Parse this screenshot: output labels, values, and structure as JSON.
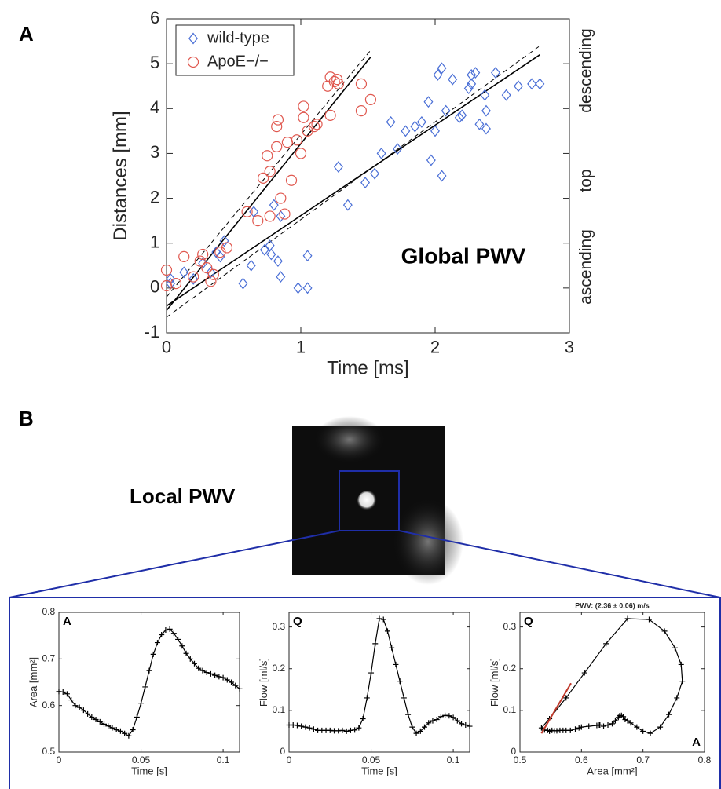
{
  "panel_b": {
    "label": "B",
    "caption": "Local PWV"
  },
  "chart_data": [
    {
      "type": "scatter",
      "panel_label": "A",
      "x_label": "Time [ms]",
      "y_label": "Distances [mm]",
      "xlim": [
        0,
        3
      ],
      "ylim": [
        -1,
        6
      ],
      "xticks": [
        0,
        1,
        2,
        3
      ],
      "yticks": [
        -1,
        0,
        1,
        2,
        3,
        4,
        5,
        6
      ],
      "legend": "upper left",
      "annotations": [
        "Global PWV"
      ],
      "right_labels": [
        "ascending",
        "top",
        "descending"
      ],
      "series": [
        {
          "name": "wild-type",
          "color": "#4a6fd6",
          "marker": "diamond",
          "x": [
            0.03,
            0.03,
            0.13,
            0.2,
            0.27,
            0.33,
            0.4,
            0.43,
            0.37,
            0.57,
            0.65,
            0.63,
            0.73,
            0.77,
            0.78,
            0.8,
            0.83,
            0.85,
            0.85,
            0.98,
            1.05,
            1.05,
            1.28,
            1.35,
            1.48,
            1.55,
            1.6,
            1.67,
            1.72,
            1.78,
            1.85,
            1.9,
            1.95,
            1.97,
            2.0,
            2.02,
            2.05,
            2.05,
            2.08,
            2.13,
            2.18,
            2.2,
            2.25,
            2.27,
            2.27,
            2.3,
            2.33,
            2.37,
            2.38,
            2.38,
            2.45,
            2.53,
            2.62,
            2.72,
            2.78
          ],
          "values": [
            0.1,
            0.2,
            0.35,
            0.2,
            0.55,
            0.35,
            0.7,
            1.05,
            0.8,
            0.1,
            1.7,
            0.5,
            0.85,
            0.95,
            0.75,
            1.85,
            0.6,
            0.25,
            1.6,
            0.0,
            0.0,
            0.72,
            2.7,
            1.85,
            2.35,
            2.55,
            3.0,
            3.7,
            3.1,
            3.5,
            3.6,
            3.7,
            4.15,
            2.85,
            3.5,
            4.75,
            2.5,
            4.9,
            3.95,
            4.65,
            3.8,
            3.85,
            4.45,
            4.55,
            4.75,
            4.8,
            3.65,
            4.3,
            3.55,
            3.95,
            4.8,
            4.3,
            4.5,
            4.55,
            4.55
          ]
        },
        {
          "name": "ApoE−/−",
          "color": "#e0584f",
          "marker": "circle",
          "x": [
            0,
            0,
            0.07,
            0.13,
            0.2,
            0.25,
            0.27,
            0.3,
            0.33,
            0.35,
            0.4,
            0.45,
            0.6,
            0.68,
            0.72,
            0.75,
            0.77,
            0.77,
            0.82,
            0.82,
            0.83,
            0.85,
            0.88,
            0.9,
            0.93,
            0.97,
            1.0,
            1.02,
            1.02,
            1.05,
            1.1,
            1.12,
            1.2,
            1.22,
            1.22,
            1.25,
            1.27,
            1.28,
            1.45,
            1.45,
            1.52
          ],
          "values": [
            0.05,
            0.4,
            0.1,
            0.7,
            0.25,
            0.6,
            0.75,
            0.45,
            0.15,
            0.3,
            0.8,
            0.9,
            1.7,
            1.5,
            2.45,
            2.95,
            2.6,
            1.6,
            3.15,
            3.6,
            3.75,
            2.0,
            1.65,
            3.25,
            2.4,
            3.3,
            3.0,
            3.8,
            4.05,
            3.5,
            3.6,
            3.65,
            4.5,
            4.7,
            3.85,
            4.6,
            4.65,
            4.55,
            4.55,
            3.95,
            4.2
          ]
        }
      ],
      "fit_lines": [
        {
          "x": [
            0,
            2.78
          ],
          "values": [
            -0.4,
            5.2
          ],
          "color": "#000000",
          "dashed": false
        },
        {
          "x": [
            0,
            2.78
          ],
          "values": [
            -0.65,
            5.4
          ],
          "color": "#000000",
          "dashed": true
        },
        {
          "x": [
            0,
            1.52
          ],
          "values": [
            -0.5,
            5.15
          ],
          "color": "#000000",
          "dashed": false
        },
        {
          "x": [
            0,
            1.52
          ],
          "values": [
            -0.2,
            5.3
          ],
          "color": "#000000",
          "dashed": true
        }
      ]
    },
    {
      "type": "line",
      "corner_labels": [
        "A"
      ],
      "x_label": "Time [s]",
      "y_label": "Area [mm²]",
      "xlim": [
        0,
        0.11
      ],
      "ylim": [
        0.5,
        0.8
      ],
      "xticks": [
        0,
        0.05,
        0.1
      ],
      "yticks": [
        0.5,
        0.6,
        0.7,
        0.8
      ],
      "color": "#000000",
      "x": [
        0,
        0.0025,
        0.005,
        0.0075,
        0.01,
        0.0125,
        0.015,
        0.0175,
        0.02,
        0.0225,
        0.025,
        0.0275,
        0.03,
        0.0325,
        0.035,
        0.0375,
        0.04,
        0.0425,
        0.045,
        0.0475,
        0.05,
        0.0525,
        0.055,
        0.0575,
        0.06,
        0.0625,
        0.065,
        0.0675,
        0.07,
        0.0725,
        0.075,
        0.0775,
        0.08,
        0.0825,
        0.085,
        0.0875,
        0.09,
        0.0925,
        0.095,
        0.0975,
        0.1,
        0.1025,
        0.105,
        0.1075,
        0.11
      ],
      "values": [
        0.63,
        0.629,
        0.625,
        0.612,
        0.6,
        0.596,
        0.59,
        0.582,
        0.575,
        0.57,
        0.565,
        0.56,
        0.556,
        0.552,
        0.548,
        0.545,
        0.54,
        0.535,
        0.548,
        0.575,
        0.605,
        0.64,
        0.675,
        0.71,
        0.735,
        0.752,
        0.762,
        0.764,
        0.755,
        0.742,
        0.728,
        0.712,
        0.7,
        0.69,
        0.68,
        0.675,
        0.671,
        0.668,
        0.665,
        0.662,
        0.66,
        0.655,
        0.65,
        0.643,
        0.636
      ]
    },
    {
      "type": "line",
      "corner_labels": [
        "Q"
      ],
      "x_label": "Time [s]",
      "y_label": "Flow [ml/s]",
      "xlim": [
        0,
        0.11
      ],
      "ylim": [
        0,
        0.335
      ],
      "xticks": [
        0,
        0.05,
        0.1
      ],
      "yticks": [
        0,
        0.1,
        0.2,
        0.3
      ],
      "color": "#000000",
      "x": [
        0,
        0.0025,
        0.005,
        0.0075,
        0.01,
        0.0125,
        0.015,
        0.0175,
        0.02,
        0.0225,
        0.025,
        0.0275,
        0.03,
        0.0325,
        0.035,
        0.0375,
        0.04,
        0.0425,
        0.045,
        0.0475,
        0.05,
        0.0525,
        0.055,
        0.0575,
        0.06,
        0.0625,
        0.065,
        0.0675,
        0.07,
        0.0725,
        0.075,
        0.0775,
        0.08,
        0.0825,
        0.085,
        0.0875,
        0.09,
        0.0925,
        0.095,
        0.0975,
        0.1,
        0.1025,
        0.105,
        0.1075,
        0.11
      ],
      "values": [
        0.065,
        0.065,
        0.064,
        0.062,
        0.06,
        0.058,
        0.055,
        0.052,
        0.052,
        0.052,
        0.052,
        0.051,
        0.051,
        0.052,
        0.05,
        0.052,
        0.053,
        0.058,
        0.08,
        0.13,
        0.19,
        0.26,
        0.32,
        0.318,
        0.29,
        0.25,
        0.21,
        0.17,
        0.13,
        0.09,
        0.06,
        0.045,
        0.05,
        0.06,
        0.07,
        0.075,
        0.078,
        0.085,
        0.088,
        0.087,
        0.083,
        0.075,
        0.068,
        0.065,
        0.062
      ]
    },
    {
      "type": "line",
      "title": "PWV: (2.36 ± 0.06) m/s",
      "corner_labels": [
        "Q",
        "A"
      ],
      "x_label": "Area [mm²]",
      "y_label": "Flow [ml/s]",
      "xlim": [
        0.5,
        0.8
      ],
      "ylim": [
        0,
        0.335
      ],
      "xticks": [
        0.5,
        0.6,
        0.7,
        0.8
      ],
      "yticks": [
        0,
        0.1,
        0.2,
        0.3
      ],
      "color": "#000000",
      "x": [
        0.63,
        0.629,
        0.625,
        0.612,
        0.6,
        0.596,
        0.59,
        0.582,
        0.575,
        0.57,
        0.565,
        0.56,
        0.556,
        0.552,
        0.548,
        0.545,
        0.54,
        0.535,
        0.548,
        0.575,
        0.605,
        0.64,
        0.675,
        0.71,
        0.735,
        0.752,
        0.762,
        0.764,
        0.755,
        0.742,
        0.728,
        0.712,
        0.7,
        0.69,
        0.68,
        0.675,
        0.671,
        0.668,
        0.665,
        0.662,
        0.66,
        0.655,
        0.65,
        0.643,
        0.636
      ],
      "values": [
        0.065,
        0.065,
        0.064,
        0.062,
        0.06,
        0.058,
        0.055,
        0.052,
        0.052,
        0.052,
        0.052,
        0.051,
        0.051,
        0.052,
        0.05,
        0.052,
        0.053,
        0.058,
        0.08,
        0.13,
        0.19,
        0.26,
        0.32,
        0.318,
        0.29,
        0.25,
        0.21,
        0.17,
        0.13,
        0.09,
        0.06,
        0.045,
        0.05,
        0.06,
        0.07,
        0.075,
        0.078,
        0.085,
        0.088,
        0.087,
        0.083,
        0.075,
        0.068,
        0.065,
        0.062
      ],
      "fit_lines": [
        {
          "x": [
            0.535,
            0.583
          ],
          "values": [
            0.045,
            0.165
          ],
          "color": "#c0392b",
          "dashed": false
        }
      ]
    }
  ]
}
